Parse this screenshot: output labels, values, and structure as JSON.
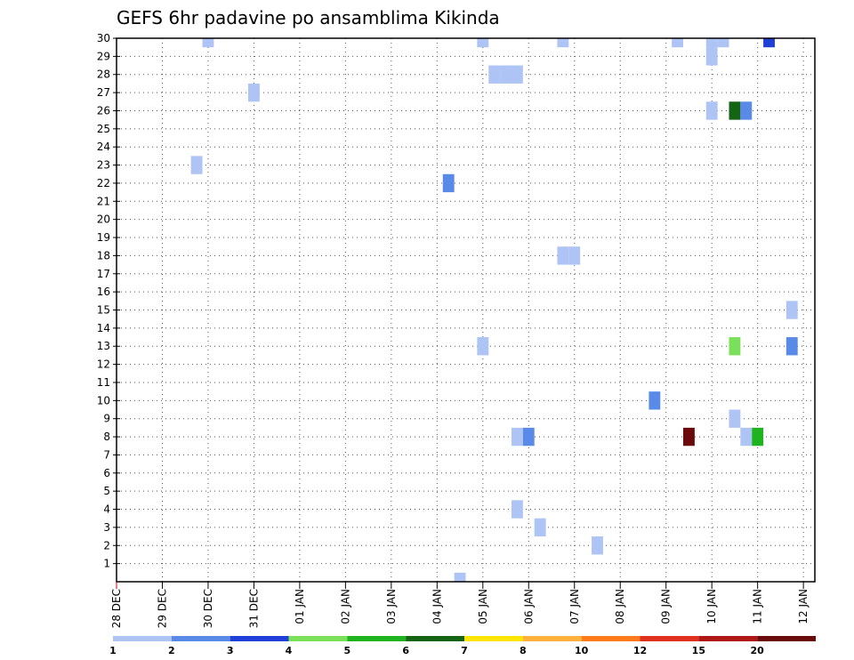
{
  "chart_data": {
    "type": "heatmap",
    "title": "GEFS 6hr padavine po ansamblima Kikinda",
    "xlabel": "",
    "ylabel": "",
    "x_tick_labels": [
      "28 DEC",
      "29 DEC",
      "30 DEC",
      "31 DEC",
      "01 JAN",
      "02 JAN",
      "03 JAN",
      "04 JAN",
      "05 JAN",
      "06 JAN",
      "07 JAN",
      "08 JAN",
      "09 JAN",
      "10 JAN",
      "11 JAN",
      "12 JAN"
    ],
    "xlim_days": [
      0,
      15.25
    ],
    "y_tick_labels": [
      "1",
      "2",
      "3",
      "4",
      "5",
      "6",
      "7",
      "8",
      "9",
      "10",
      "11",
      "12",
      "13",
      "14",
      "15",
      "16",
      "17",
      "18",
      "19",
      "20",
      "21",
      "22",
      "23",
      "24",
      "25",
      "26",
      "27",
      "28",
      "29",
      "30"
    ],
    "ylim": [
      0,
      30
    ],
    "grid": true,
    "colorbar": {
      "levels": [
        "1",
        "2",
        "3",
        "4",
        "5",
        "6",
        "7",
        "8",
        "10",
        "12",
        "15",
        "20"
      ],
      "colors": [
        "#aec4f4",
        "#5a8ae8",
        "#1f3fd6",
        "#7ae05a",
        "#1fb41f",
        "#146414",
        "#ffe600",
        "#ffb13c",
        "#ff7a1a",
        "#e0301e",
        "#b01818",
        "#6b0a0a"
      ]
    },
    "cells": [
      {
        "date": "05 JAN 00Z",
        "member": 30,
        "color_index": 0
      },
      {
        "date": "30 DEC 00Z",
        "member": 30,
        "color_index": 0
      },
      {
        "date": "06 JAN 18Z",
        "member": 30,
        "color_index": 0
      },
      {
        "date": "09 JAN 06Z",
        "member": 30,
        "color_index": 0
      },
      {
        "date": "10 JAN 00Z",
        "member": 30,
        "color_index": 0
      },
      {
        "date": "10 JAN 06Z",
        "member": 30,
        "color_index": 0
      },
      {
        "date": "11 JAN 06Z",
        "member": 30,
        "color_index": 2
      },
      {
        "date": "10 JAN 00Z",
        "member": 29,
        "color_index": 0
      },
      {
        "date": "05 JAN 06Z",
        "member": 28,
        "color_index": 0
      },
      {
        "date": "05 JAN 12Z",
        "member": 28,
        "color_index": 0
      },
      {
        "date": "05 JAN 18Z",
        "member": 28,
        "color_index": 0
      },
      {
        "date": "31 DEC 00Z",
        "member": 27,
        "color_index": 0
      },
      {
        "date": "10 JAN 00Z",
        "member": 26,
        "color_index": 0
      },
      {
        "date": "10 JAN 12Z",
        "member": 26,
        "color_index": 5
      },
      {
        "date": "10 JAN 18Z",
        "member": 26,
        "color_index": 1
      },
      {
        "date": "29 DEC 18Z",
        "member": 23,
        "color_index": 0
      },
      {
        "date": "04 JAN 06Z",
        "member": 22,
        "color_index": 1
      },
      {
        "date": "06 JAN 18Z",
        "member": 18,
        "color_index": 0
      },
      {
        "date": "07 JAN 00Z",
        "member": 18,
        "color_index": 0
      },
      {
        "date": "11 JAN 18Z",
        "member": 15,
        "color_index": 0
      },
      {
        "date": "05 JAN 00Z",
        "member": 13,
        "color_index": 0
      },
      {
        "date": "10 JAN 12Z",
        "member": 13,
        "color_index": 3
      },
      {
        "date": "11 JAN 18Z",
        "member": 13,
        "color_index": 1
      },
      {
        "date": "08 JAN 18Z",
        "member": 10,
        "color_index": 1
      },
      {
        "date": "10 JAN 12Z",
        "member": 9,
        "color_index": 0
      },
      {
        "date": "05 JAN 18Z",
        "member": 8,
        "color_index": 0
      },
      {
        "date": "06 JAN 00Z",
        "member": 8,
        "color_index": 1
      },
      {
        "date": "09 JAN 12Z",
        "member": 8,
        "color_index": 11
      },
      {
        "date": "10 JAN 18Z",
        "member": 8,
        "color_index": 0
      },
      {
        "date": "11 JAN 00Z",
        "member": 8,
        "color_index": 4
      },
      {
        "date": "05 JAN 18Z",
        "member": 4,
        "color_index": 0
      },
      {
        "date": "06 JAN 06Z",
        "member": 3,
        "color_index": 0
      },
      {
        "date": "07 JAN 12Z",
        "member": 2,
        "color_index": 0
      },
      {
        "date": "04 JAN 12Z",
        "member": 0,
        "color_index": 0
      }
    ]
  }
}
